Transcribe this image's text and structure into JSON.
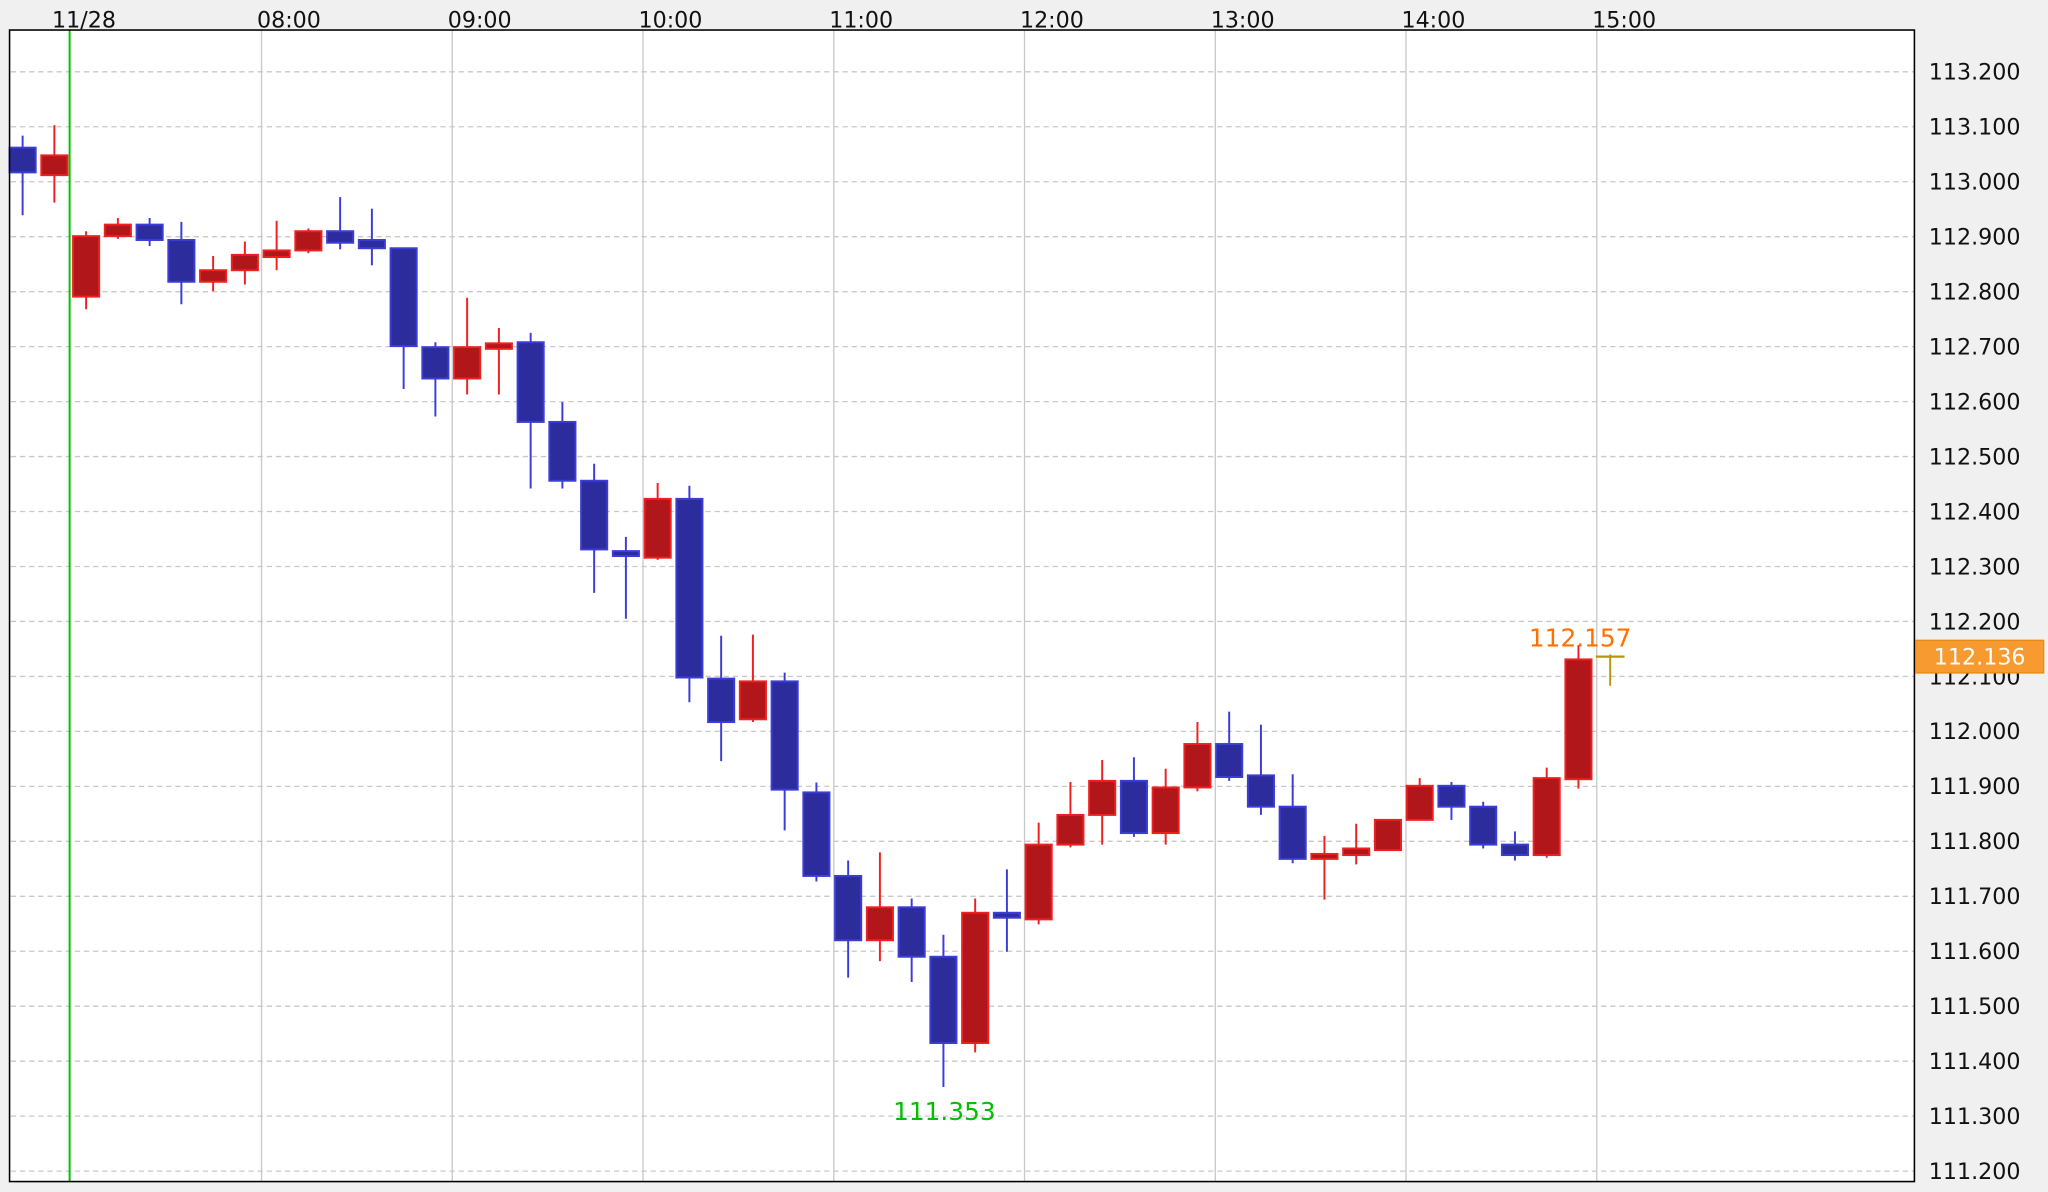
{
  "chart_data": {
    "type": "candlestick",
    "title": "",
    "xlabel": "",
    "ylabel": "",
    "ylim": [
      111.2,
      113.2
    ],
    "grid": true,
    "y_ticks": [
      "113.200",
      "113.100",
      "113.000",
      "112.900",
      "112.800",
      "112.700",
      "112.600",
      "112.500",
      "112.400",
      "112.300",
      "112.200",
      "112.100",
      "112.000",
      "111.900",
      "111.800",
      "111.700",
      "111.600",
      "111.500",
      "111.400",
      "111.300",
      "111.200"
    ],
    "x_ticks": [
      "11/28",
      "08:00",
      "09:00",
      "10:00",
      "11:00",
      "12:00",
      "13:00",
      "14:00",
      "15:00"
    ],
    "candle_interval": "10 min",
    "ohlc": [
      [
        113.062,
        113.084,
        112.939,
        113.017
      ],
      [
        113.012,
        113.103,
        112.962,
        113.048
      ],
      [
        112.791,
        112.91,
        112.768,
        112.901
      ],
      [
        112.901,
        112.934,
        112.896,
        112.922
      ],
      [
        112.922,
        112.934,
        112.883,
        112.894
      ],
      [
        112.894,
        112.927,
        112.777,
        112.818
      ],
      [
        112.818,
        112.865,
        112.801,
        112.839
      ],
      [
        112.839,
        112.891,
        112.813,
        112.867
      ],
      [
        112.863,
        112.929,
        112.839,
        112.875
      ],
      [
        112.875,
        112.915,
        112.87,
        112.91
      ],
      [
        112.91,
        112.972,
        112.877,
        112.889
      ],
      [
        112.894,
        112.951,
        112.848,
        112.879
      ],
      [
        112.879,
        112.879,
        112.623,
        112.701
      ],
      [
        112.699,
        112.708,
        112.573,
        112.642
      ],
      [
        112.642,
        112.789,
        112.613,
        112.699
      ],
      [
        112.696,
        112.734,
        112.613,
        112.706
      ],
      [
        112.708,
        112.725,
        112.442,
        112.563
      ],
      [
        112.563,
        112.599,
        112.442,
        112.456
      ],
      [
        112.456,
        112.487,
        112.252,
        112.331
      ],
      [
        112.328,
        112.354,
        112.205,
        112.319
      ],
      [
        112.316,
        112.452,
        112.312,
        112.423
      ],
      [
        112.423,
        112.447,
        112.053,
        112.098
      ],
      [
        112.096,
        112.174,
        111.946,
        112.017
      ],
      [
        112.022,
        112.176,
        112.017,
        112.091
      ],
      [
        112.091,
        112.107,
        111.82,
        111.894
      ],
      [
        111.889,
        111.907,
        111.727,
        111.737
      ],
      [
        111.737,
        111.765,
        111.552,
        111.62
      ],
      [
        111.62,
        111.78,
        111.582,
        111.68
      ],
      [
        111.68,
        111.696,
        111.544,
        111.59
      ],
      [
        111.59,
        111.63,
        111.353,
        111.433
      ],
      [
        111.433,
        111.696,
        111.416,
        111.67
      ],
      [
        111.67,
        111.749,
        111.599,
        111.661
      ],
      [
        111.658,
        111.834,
        111.649,
        111.794
      ],
      [
        111.794,
        111.908,
        111.789,
        111.848
      ],
      [
        111.848,
        111.948,
        111.794,
        111.91
      ],
      [
        111.91,
        111.953,
        111.808,
        111.815
      ],
      [
        111.815,
        111.932,
        111.794,
        111.898
      ],
      [
        111.898,
        112.017,
        111.891,
        111.977
      ],
      [
        111.977,
        112.036,
        111.91,
        111.917
      ],
      [
        111.92,
        112.012,
        111.848,
        111.863
      ],
      [
        111.863,
        111.922,
        111.76,
        111.768
      ],
      [
        111.768,
        111.81,
        111.694,
        111.777
      ],
      [
        111.775,
        111.832,
        111.758,
        111.787
      ],
      [
        111.784,
        111.839,
        111.784,
        111.839
      ],
      [
        111.839,
        111.915,
        111.839,
        111.901
      ],
      [
        111.901,
        111.908,
        111.839,
        111.863
      ],
      [
        111.863,
        111.872,
        111.787,
        111.794
      ],
      [
        111.794,
        111.818,
        111.765,
        111.775
      ],
      [
        111.775,
        111.934,
        111.77,
        111.915
      ],
      [
        111.913,
        112.157,
        111.896,
        112.131
      ],
      [
        112.136,
        112.14,
        112.083,
        112.136
      ]
    ],
    "annotations": {
      "low_label": "111.353",
      "high_label": "112.157"
    },
    "current_price": "112.136",
    "current_price_value": 112.136,
    "colors": {
      "up_fill": "#b0161a",
      "up_stroke": "#f02020",
      "down_fill": "#2c2c9c",
      "down_stroke": "#3c3cd8",
      "low_label": "#00c000",
      "high_label": "#ff7000",
      "current_price_bg": "#f79a30",
      "session_line": "#00c000"
    }
  }
}
